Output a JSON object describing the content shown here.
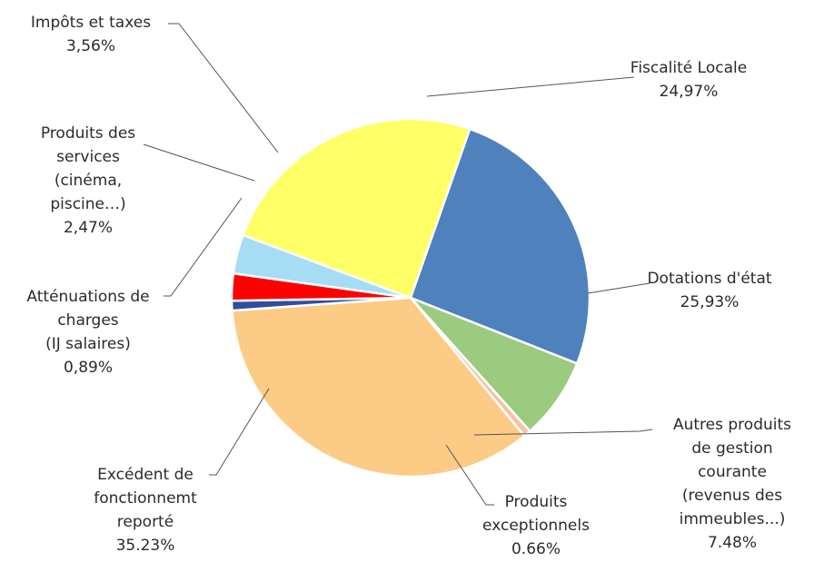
{
  "chart_data": {
    "type": "pie",
    "slices": [
      {
        "key": "fiscalite",
        "lines": [
          "Fiscalité Locale"
        ],
        "pct_label": "24,97%",
        "value": 24.97,
        "color": "#FFFF66"
      },
      {
        "key": "dotations",
        "lines": [
          "Dotations d'état"
        ],
        "pct_label": "25,93%",
        "value": 25.93,
        "color": "#4F81BD"
      },
      {
        "key": "autres",
        "lines": [
          "Autres produits",
          "de gestion",
          "courante",
          "(revenus des",
          "immeubles...)"
        ],
        "pct_label": "7.48%",
        "value": 7.48,
        "color": "#9BCB7E"
      },
      {
        "key": "exceptionnels",
        "lines": [
          "Produits",
          "exceptionnels"
        ],
        "pct_label": "0.66%",
        "value": 0.66,
        "color": "#F4C3A8"
      },
      {
        "key": "excedent",
        "lines": [
          "Excédent de",
          "fonctionnemt",
          "reporté"
        ],
        "pct_label": "35.23%",
        "value": 35.23,
        "color": "#FCCB85"
      },
      {
        "key": "attenuations",
        "lines": [
          "Atténuations de",
          "charges",
          "(IJ salaires)"
        ],
        "pct_label": "0,89%",
        "value": 0.89,
        "color": "#2E4F9A"
      },
      {
        "key": "services",
        "lines": [
          "Produits des",
          "services",
          "(cinéma,",
          "piscine…)"
        ],
        "pct_label": "2,47%",
        "value": 2.47,
        "color": "#FF0000"
      },
      {
        "key": "impots",
        "lines": [
          "Impôts et taxes"
        ],
        "pct_label": "3,56%",
        "value": 3.56,
        "color": "#A6DDF5"
      }
    ]
  }
}
